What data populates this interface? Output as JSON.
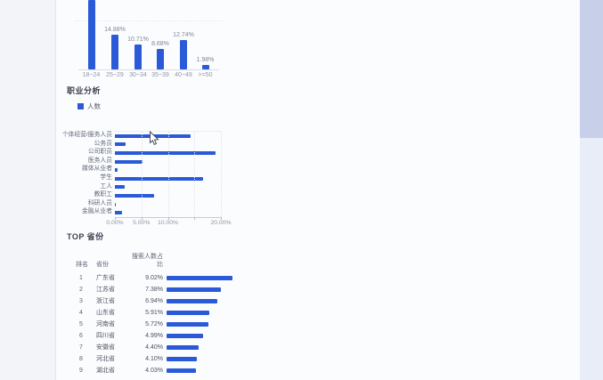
{
  "colors": {
    "bar_blue": "#2a5ad8",
    "panel_bg": "#f3f4f9",
    "content_bg": "#fbfcfe",
    "scroll_track": "#e9edf7",
    "scroll_thumb": "#c7cfe9"
  },
  "chart_data": [
    {
      "id": "age-distribution",
      "type": "bar",
      "categories": [
        "18~24",
        "25~29",
        "30~34",
        "35~39",
        "40~49",
        ">=50"
      ],
      "values": [
        null,
        14.88,
        10.71,
        8.68,
        12.74,
        1.98
      ],
      "value_labels": [
        "",
        "14.88%",
        "10.71%",
        "8.68%",
        "12.74%",
        "1.98%"
      ],
      "note": "first bar value label clipped above viewport",
      "grid": "faint-horizontal"
    },
    {
      "id": "occupation",
      "type": "bar",
      "orientation": "horizontal",
      "title": "职业分析",
      "legend": [
        "人数"
      ],
      "legend_position": "top-left",
      "categories": [
        "个体经营/服务人员",
        "公务员",
        "公司职员",
        "医务人员",
        "媒体从业者",
        "学生",
        "工人",
        "教职工",
        "科研人员",
        "金融从业者"
      ],
      "values": [
        14.3,
        2.0,
        19.0,
        5.2,
        0.5,
        16.6,
        1.8,
        7.4,
        0.2,
        1.3
      ],
      "note": "values estimated from bar pixel lengths",
      "xlim": [
        0,
        20
      ],
      "xtick_labels": [
        "0.00%",
        "5.00%",
        "10.00%",
        "20.00%"
      ],
      "xtick_values": [
        0,
        5,
        10,
        20
      ],
      "grid": "dotted-vertical"
    },
    {
      "id": "top-provinces",
      "type": "table",
      "title": "TOP 省份",
      "columns": [
        "排名",
        "省份",
        "搜索人数占比"
      ],
      "rows": [
        {
          "rank": "1",
          "province": "广东省",
          "ratio": "9.02%",
          "value": 9.02
        },
        {
          "rank": "2",
          "province": "江苏省",
          "ratio": "7.38%",
          "value": 7.38
        },
        {
          "rank": "3",
          "province": "浙江省",
          "ratio": "6.94%",
          "value": 6.94
        },
        {
          "rank": "4",
          "province": "山东省",
          "ratio": "5.91%",
          "value": 5.91
        },
        {
          "rank": "5",
          "province": "河南省",
          "ratio": "5.72%",
          "value": 5.72
        },
        {
          "rank": "6",
          "province": "四川省",
          "ratio": "4.99%",
          "value": 4.99
        },
        {
          "rank": "7",
          "province": "安徽省",
          "ratio": "4.40%",
          "value": 4.4
        },
        {
          "rank": "8",
          "province": "河北省",
          "ratio": "4.10%",
          "value": 4.1
        },
        {
          "rank": "9",
          "province": "湖北省",
          "ratio": "4.03%",
          "value": 4.03
        }
      ],
      "row_bars": true
    }
  ]
}
